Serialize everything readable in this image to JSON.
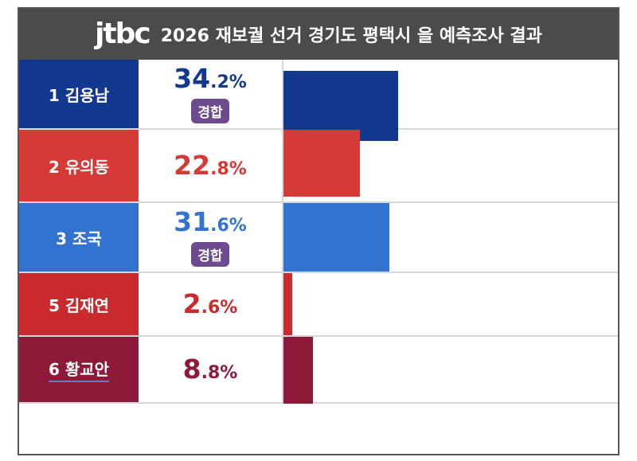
{
  "header": {
    "logo": "jtbc",
    "title": "2026 재보궐 선거 경기도 평택시 을 예측조사 결과"
  },
  "chart_data": {
    "type": "bar",
    "categories": [
      "1 김용남",
      "2 유의동",
      "3 조국",
      "5 김재연",
      "6 황교안"
    ],
    "values": [
      34.2,
      22.8,
      31.6,
      2.6,
      8.8
    ],
    "unit": "%",
    "title": "2026 재보궐 선거 경기도 평택시 을 예측조사 결과",
    "xlabel": "",
    "ylabel": "",
    "ylim": [
      0,
      100
    ],
    "series": [
      {
        "category": "1 김용남",
        "value": 34.2,
        "int": "34",
        "dec": ".2%",
        "badge": "경합",
        "color": "#13388f"
      },
      {
        "category": "2 유의동",
        "value": 22.8,
        "int": "22",
        "dec": ".8%",
        "badge": "",
        "color": "#d63a36"
      },
      {
        "category": "3 조국",
        "value": 31.6,
        "int": "31",
        "dec": ".6%",
        "badge": "경합",
        "color": "#3273cf"
      },
      {
        "category": "5 김재연",
        "value": 2.6,
        "int": "2",
        "dec": ".6%",
        "badge": "",
        "color": "#c92a2d"
      },
      {
        "category": "6 황교안",
        "value": 8.8,
        "int": "8",
        "dec": ".8%",
        "badge": "",
        "color": "#8d1a38"
      }
    ]
  }
}
